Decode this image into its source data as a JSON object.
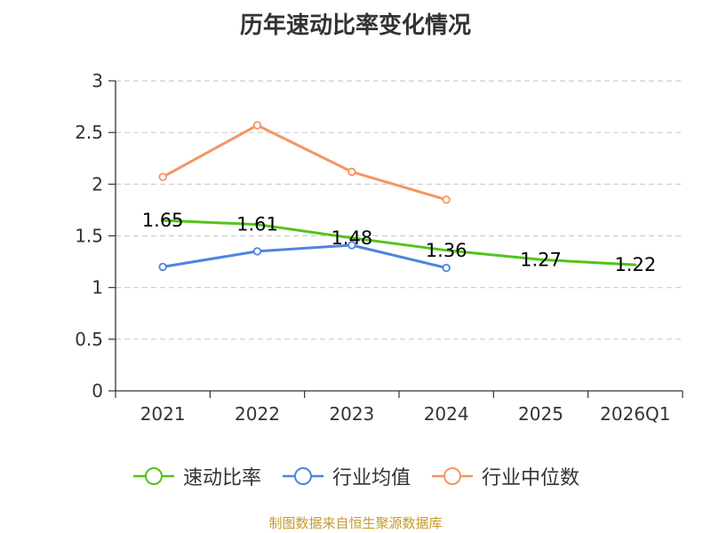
{
  "chart_data": {
    "type": "line",
    "title": "历年速动比率变化情况",
    "categories": [
      "2021",
      "2022",
      "2023",
      "2024",
      "2025",
      "2026Q1"
    ],
    "y_ticks": [
      "0",
      "0.5",
      "1",
      "1.5",
      "2",
      "2.5",
      "3"
    ],
    "ylim": [
      0,
      3
    ],
    "grid": true,
    "legend_position": "bottom",
    "series": [
      {
        "name": "速动比率",
        "color": "#52c41a",
        "values": [
          1.65,
          1.61,
          1.48,
          1.36,
          1.27,
          1.22
        ],
        "labels": [
          "1.65",
          "1.61",
          "1.48",
          "1.36",
          "1.27",
          "1.22"
        ],
        "show_markers": false,
        "show_labels": true
      },
      {
        "name": "行业均值",
        "color": "#4e84e0",
        "values": [
          1.2,
          1.35,
          1.41,
          1.19,
          null,
          null
        ],
        "show_markers": true,
        "show_labels": false
      },
      {
        "name": "行业中位数",
        "color": "#f59563",
        "values": [
          2.07,
          2.57,
          2.12,
          1.85,
          null,
          null
        ],
        "show_markers": true,
        "show_labels": false
      }
    ]
  },
  "footer": {
    "source": "制图数据来自恒生聚源数据库"
  }
}
